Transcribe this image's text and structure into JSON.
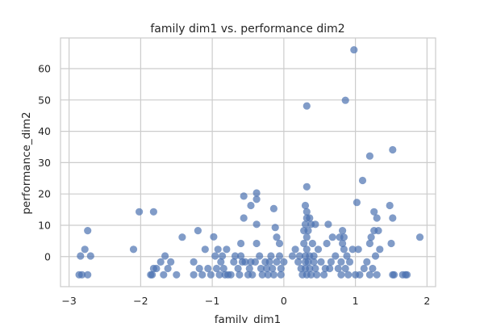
{
  "chart_data": {
    "type": "scatter",
    "title": "family dim1 vs. performance dim2",
    "xlabel": "family_dim1",
    "ylabel": "performance_dim2",
    "xlim": [
      -3.12,
      2.12
    ],
    "ylim": [
      -9.6,
      69.8
    ],
    "xticks": [
      -3,
      -2,
      -1,
      0,
      1,
      2
    ],
    "yticks": [
      0,
      10,
      20,
      30,
      40,
      50,
      60
    ],
    "grid": true,
    "legend": "none",
    "colors": {
      "point": "#4C72B0",
      "grid": "#cccccc",
      "frame": "#cccccc"
    },
    "points": [
      [
        -2.86,
        -5.8
      ],
      [
        -2.82,
        -5.8
      ],
      [
        -2.74,
        -5.8
      ],
      [
        -2.84,
        0.2
      ],
      [
        -2.78,
        2.3
      ],
      [
        -2.74,
        8.3
      ],
      [
        -2.7,
        0.2
      ],
      [
        -2.02,
        14.3
      ],
      [
        -1.82,
        14.3
      ],
      [
        -2.1,
        2.3
      ],
      [
        -1.86,
        -5.8
      ],
      [
        -1.84,
        -5.8
      ],
      [
        -1.82,
        -3.8
      ],
      [
        -1.78,
        -3.8
      ],
      [
        -1.72,
        -1.7
      ],
      [
        -1.68,
        -5.8
      ],
      [
        -1.66,
        0.2
      ],
      [
        -1.62,
        -3.8
      ],
      [
        -1.58,
        -1.7
      ],
      [
        -1.5,
        -5.8
      ],
      [
        -1.42,
        6.2
      ],
      [
        -1.26,
        -1.7
      ],
      [
        -1.26,
        -5.8
      ],
      [
        -1.2,
        8.3
      ],
      [
        -1.18,
        -3.8
      ],
      [
        -1.14,
        -5.8
      ],
      [
        -1.1,
        2.3
      ],
      [
        -1.06,
        -3.8
      ],
      [
        -1.02,
        -5.8
      ],
      [
        -0.98,
        6.3
      ],
      [
        -0.96,
        0.2
      ],
      [
        -0.94,
        -3.8
      ],
      [
        -0.92,
        2.3
      ],
      [
        -0.9,
        -5.8
      ],
      [
        -0.88,
        -1.7
      ],
      [
        -0.86,
        0.2
      ],
      [
        -0.84,
        -3.8
      ],
      [
        -0.82,
        -5.8
      ],
      [
        -0.8,
        2.3
      ],
      [
        -0.78,
        -5.8
      ],
      [
        -0.74,
        -5.8
      ],
      [
        -0.7,
        -1.7
      ],
      [
        -0.68,
        0.2
      ],
      [
        -0.64,
        -3.8
      ],
      [
        -0.62,
        -5.8
      ],
      [
        -0.6,
        4.2
      ],
      [
        -0.6,
        0.2
      ],
      [
        -0.58,
        -1.7
      ],
      [
        -0.56,
        19.3
      ],
      [
        -0.56,
        12.3
      ],
      [
        -0.54,
        -1.7
      ],
      [
        -0.5,
        -5.8
      ],
      [
        -0.48,
        -3.8
      ],
      [
        -0.46,
        16.3
      ],
      [
        -0.46,
        -1.7
      ],
      [
        -0.44,
        -5.8
      ],
      [
        -0.4,
        -1.7
      ],
      [
        -0.38,
        20.3
      ],
      [
        -0.38,
        18.3
      ],
      [
        -0.38,
        10.3
      ],
      [
        -0.38,
        4.2
      ],
      [
        -0.34,
        0.2
      ],
      [
        -0.32,
        -3.8
      ],
      [
        -0.3,
        -5.8
      ],
      [
        -0.26,
        -1.7
      ],
      [
        -0.24,
        -3.8
      ],
      [
        -0.22,
        -5.8
      ],
      [
        -0.2,
        -1.7
      ],
      [
        -0.18,
        0.2
      ],
      [
        -0.16,
        -3.8
      ],
      [
        -0.14,
        -5.8
      ],
      [
        -0.14,
        15.3
      ],
      [
        -0.12,
        9.3
      ],
      [
        -0.1,
        6.2
      ],
      [
        -0.1,
        -1.7
      ],
      [
        -0.06,
        4.2
      ],
      [
        -0.06,
        0.2
      ],
      [
        -0.04,
        -5.8
      ],
      [
        -0.04,
        -3.8
      ],
      [
        0,
        -1.7
      ],
      [
        0.12,
        0.2
      ],
      [
        0.16,
        2.3
      ],
      [
        0.2,
        -1.7
      ],
      [
        0.22,
        0.2
      ],
      [
        0.24,
        -3.8
      ],
      [
        0.26,
        -5.8
      ],
      [
        0.28,
        8.3
      ],
      [
        0.28,
        4.2
      ],
      [
        0.3,
        16.3
      ],
      [
        0.3,
        10.3
      ],
      [
        0.3,
        0.2
      ],
      [
        0.3,
        -1.7
      ],
      [
        0.3,
        -3.8
      ],
      [
        0.32,
        22.3
      ],
      [
        0.32,
        14.3
      ],
      [
        0.32,
        12.3
      ],
      [
        0.32,
        6.2
      ],
      [
        0.32,
        2.3
      ],
      [
        0.32,
        -5.8
      ],
      [
        0.32,
        48.1
      ],
      [
        0.34,
        8.3
      ],
      [
        0.34,
        -1.7
      ],
      [
        0.36,
        12.3
      ],
      [
        0.36,
        0.2
      ],
      [
        0.36,
        -3.8
      ],
      [
        0.38,
        -5.8
      ],
      [
        0.38,
        10.3
      ],
      [
        0.4,
        4.2
      ],
      [
        0.42,
        -1.7
      ],
      [
        0.42,
        0.2
      ],
      [
        0.44,
        -3.8
      ],
      [
        0.44,
        10.3
      ],
      [
        0.46,
        -5.8
      ],
      [
        0.48,
        2.3
      ],
      [
        0.52,
        -1.7
      ],
      [
        0.56,
        -5.8
      ],
      [
        0.58,
        -3.8
      ],
      [
        0.6,
        4.2
      ],
      [
        0.62,
        10.3
      ],
      [
        0.64,
        -3.8
      ],
      [
        0.66,
        -1.7
      ],
      [
        0.68,
        6.2
      ],
      [
        0.72,
        0.2
      ],
      [
        0.76,
        -3.8
      ],
      [
        0.78,
        6.2
      ],
      [
        0.8,
        -1.7
      ],
      [
        0.8,
        -5.8
      ],
      [
        0.82,
        4.2
      ],
      [
        0.82,
        8.3
      ],
      [
        0.84,
        2.3
      ],
      [
        0.84,
        6.2
      ],
      [
        0.86,
        49.9
      ],
      [
        0.86,
        -3.8
      ],
      [
        0.88,
        0.2
      ],
      [
        0.9,
        -5.8
      ],
      [
        0.92,
        -1.7
      ],
      [
        0.96,
        2.3
      ],
      [
        0.98,
        66.0
      ],
      [
        1.0,
        -5.8
      ],
      [
        1.02,
        17.3
      ],
      [
        1.04,
        2.3
      ],
      [
        1.06,
        -5.8
      ],
      [
        1.1,
        24.3
      ],
      [
        1.12,
        -3.8
      ],
      [
        1.16,
        -1.7
      ],
      [
        1.2,
        32.1
      ],
      [
        1.2,
        4.2
      ],
      [
        1.2,
        -5.8
      ],
      [
        1.22,
        6.2
      ],
      [
        1.24,
        -3.8
      ],
      [
        1.26,
        14.3
      ],
      [
        1.26,
        8.3
      ],
      [
        1.28,
        0.2
      ],
      [
        1.3,
        12.3
      ],
      [
        1.3,
        -5.8
      ],
      [
        1.32,
        8.3
      ],
      [
        1.34,
        2.3
      ],
      [
        1.48,
        16.3
      ],
      [
        1.5,
        4.2
      ],
      [
        1.52,
        34.1
      ],
      [
        1.52,
        12.3
      ],
      [
        1.52,
        -5.8
      ],
      [
        1.54,
        -5.8
      ],
      [
        1.66,
        -5.8
      ],
      [
        1.7,
        -5.8
      ],
      [
        1.72,
        -5.8
      ],
      [
        1.9,
        6.2
      ]
    ]
  }
}
